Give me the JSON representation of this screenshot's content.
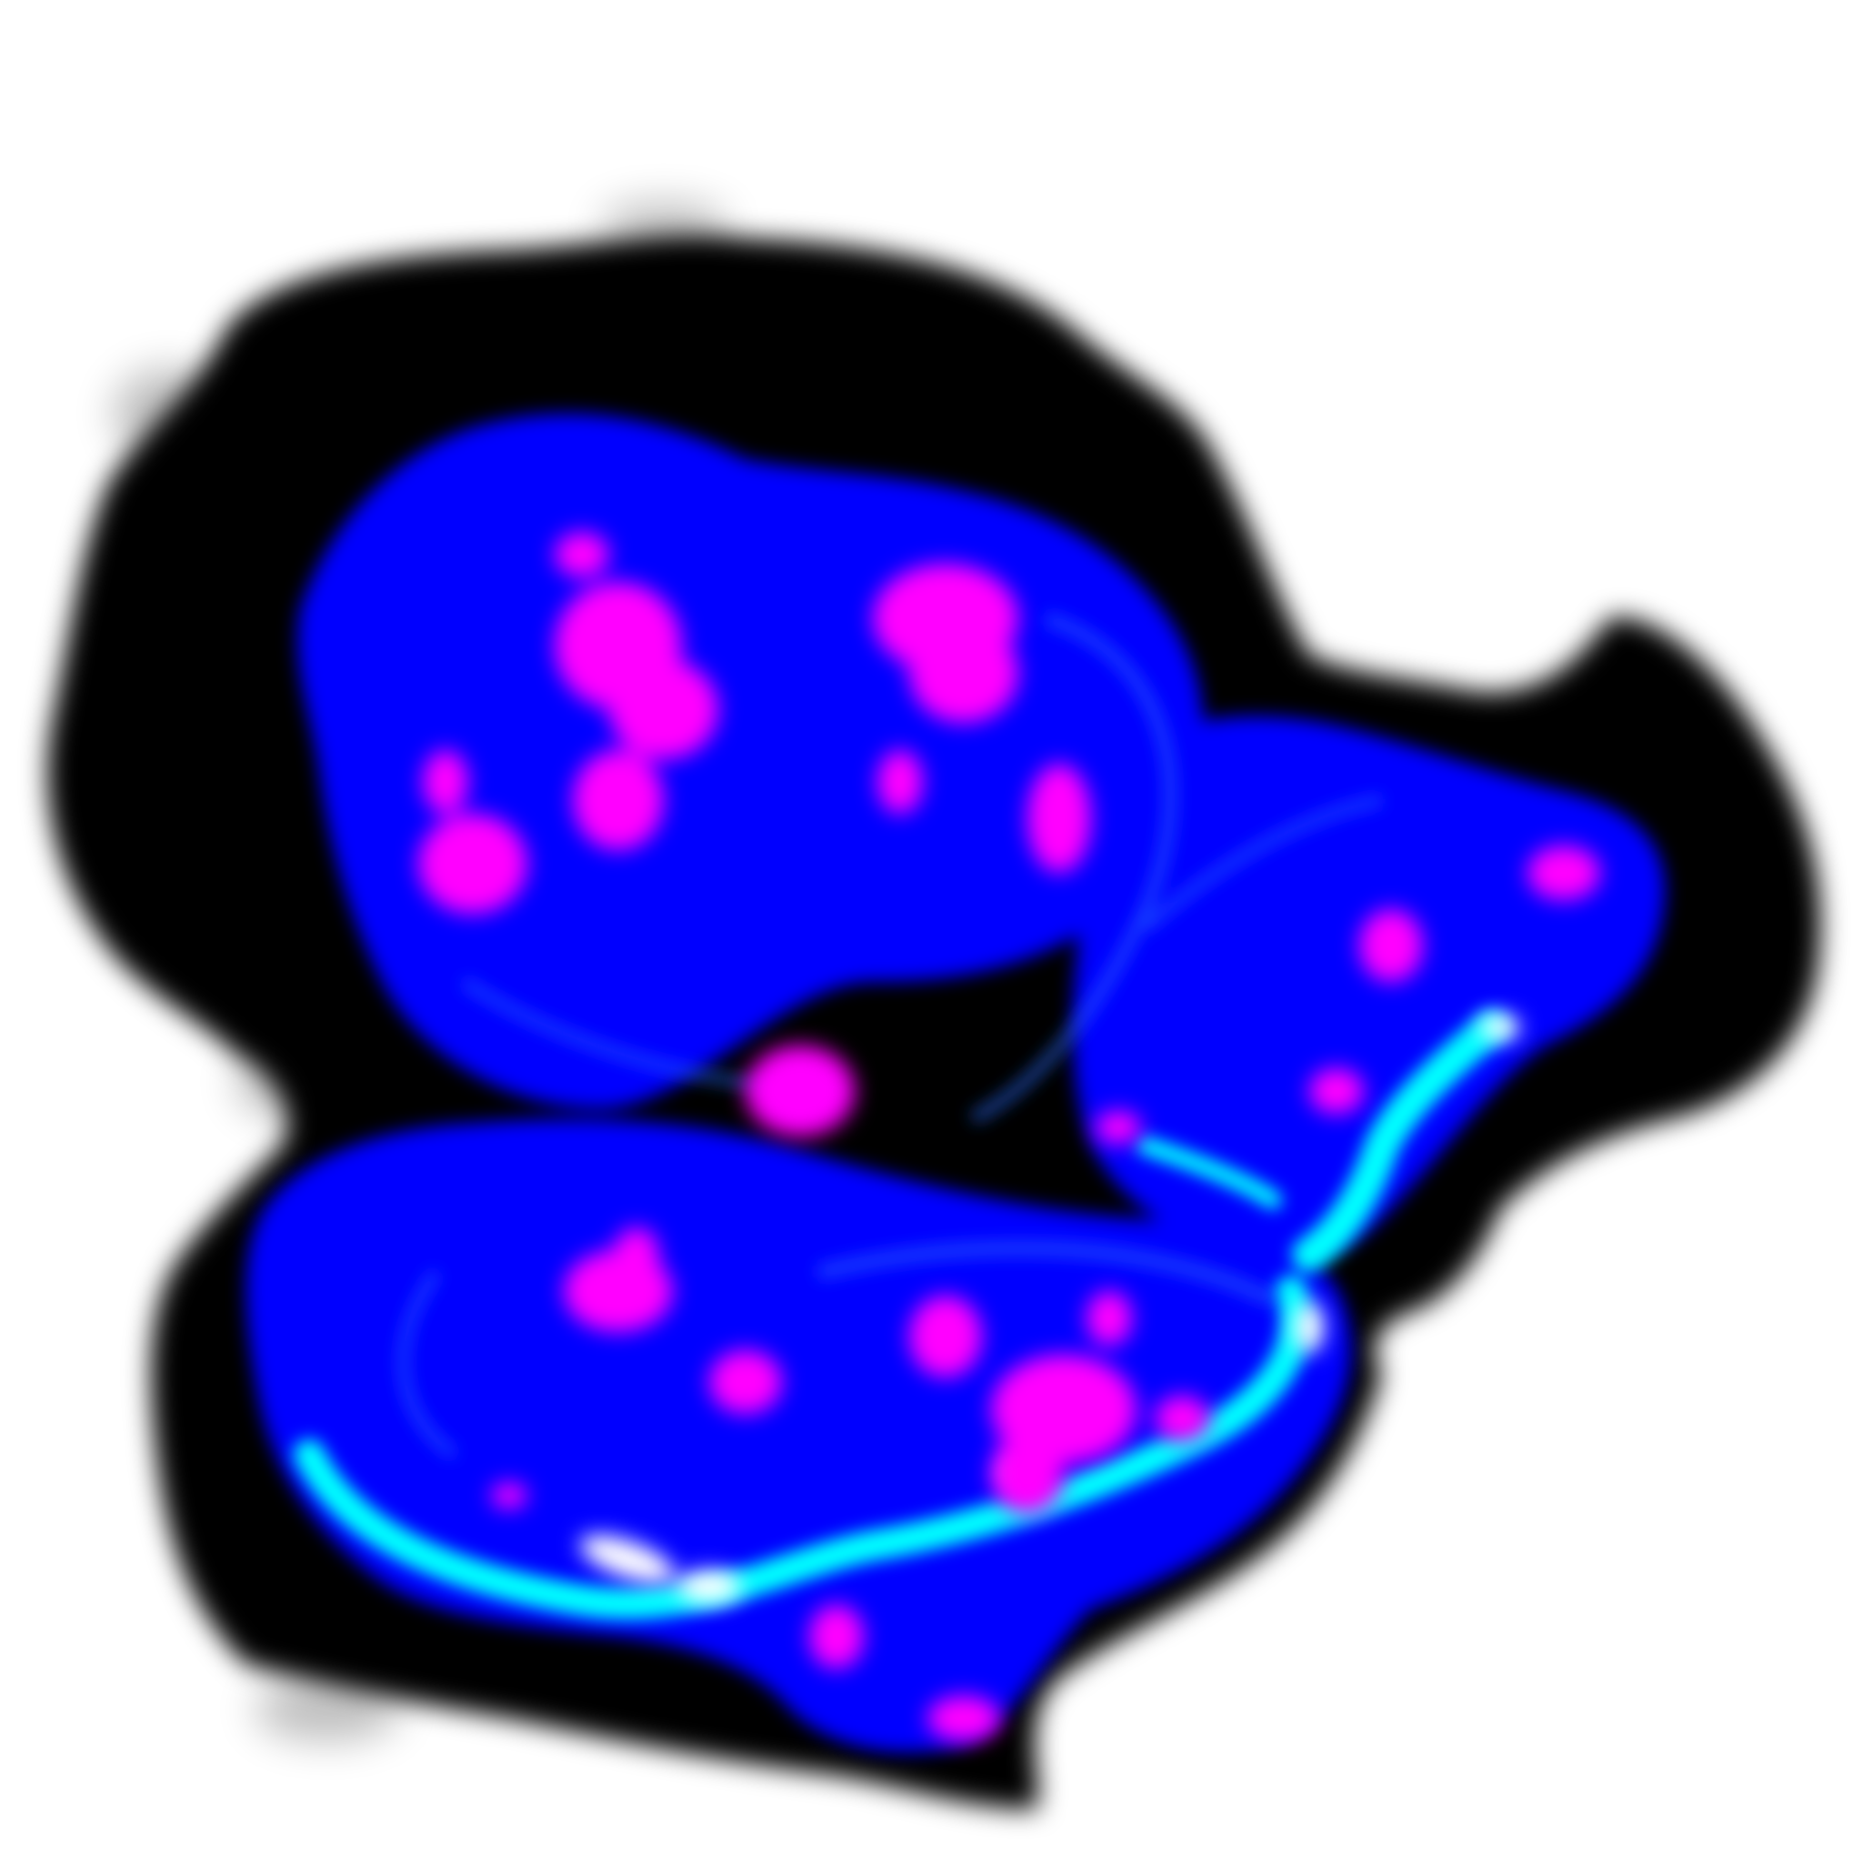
{
  "image": {
    "subject": "fluorescence-microscopy-cell-cluster",
    "colors": {
      "background": "#ffffff",
      "halo": "#000000",
      "nucleus": "#0000ff",
      "foci": "#ff00ff",
      "membrane": "#00ffff",
      "highlight": "#ffffff"
    }
  }
}
